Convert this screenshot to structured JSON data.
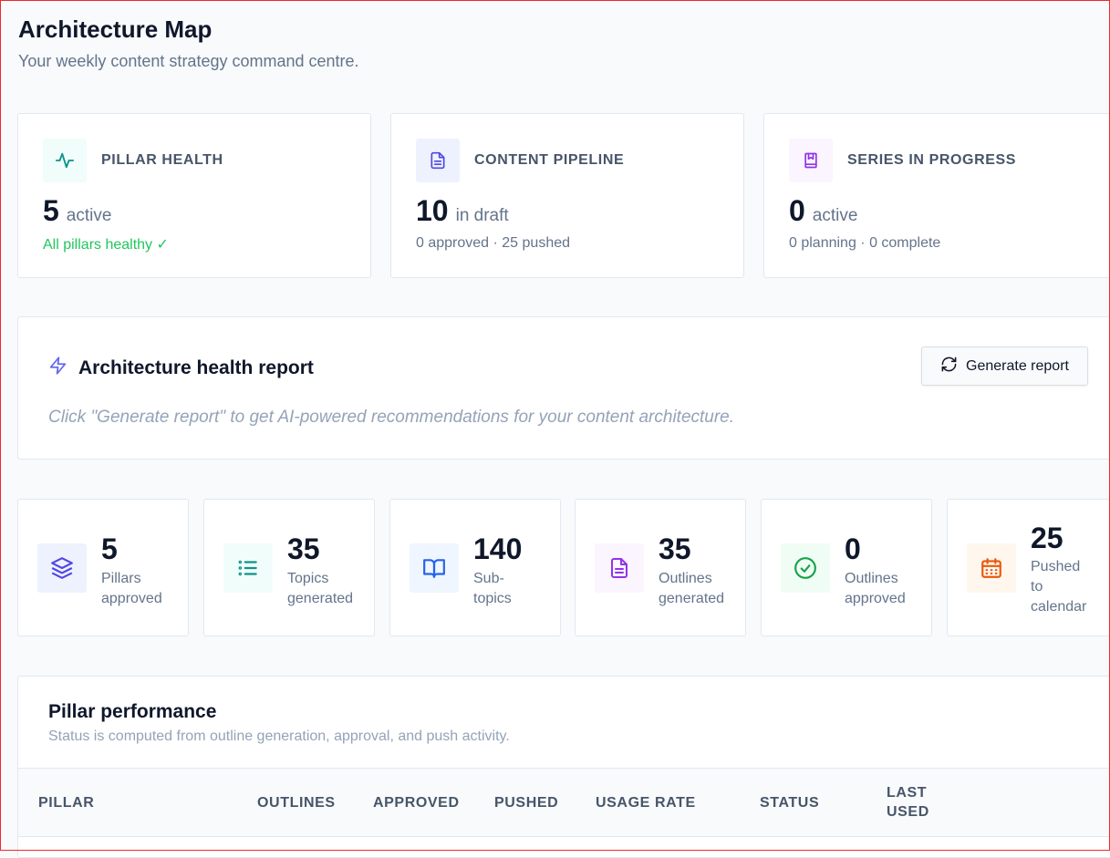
{
  "header": {
    "title": "Architecture Map",
    "subtitle": "Your weekly content strategy command centre."
  },
  "stat_cards": [
    {
      "label": "PILLAR HEALTH",
      "value": "5",
      "unit": "active",
      "sub": "All pillars healthy ✓",
      "icon": "activity-icon",
      "accent": "#0d9488"
    },
    {
      "label": "CONTENT PIPELINE",
      "value": "10",
      "unit": "in draft",
      "sub": "0 approved · 25 pushed",
      "icon": "document-icon",
      "accent": "#4f46e5"
    },
    {
      "label": "SERIES IN PROGRESS",
      "value": "0",
      "unit": "active",
      "sub": "0 planning · 0 complete",
      "icon": "book-icon",
      "accent": "#9333ea"
    }
  ],
  "report": {
    "title": "Architecture health report",
    "button_label": "Generate report",
    "hint": "Click \"Generate report\" to get AI-powered recommendations for your content architecture."
  },
  "metrics": [
    {
      "value": "5",
      "caption": "Pillars approved",
      "icon": "layers-icon",
      "accent": "#4f46e5"
    },
    {
      "value": "35",
      "caption": "Topics generated",
      "icon": "list-icon",
      "accent": "#0d9488"
    },
    {
      "value": "140",
      "caption": "Sub-topics",
      "icon": "open-book-icon",
      "accent": "#2563eb"
    },
    {
      "value": "35",
      "caption": "Outlines generated",
      "icon": "document-icon",
      "accent": "#9333ea"
    },
    {
      "value": "0",
      "caption": "Outlines approved",
      "icon": "check-circle-icon",
      "accent": "#16a34a"
    },
    {
      "value": "25",
      "caption": "Pushed to calendar",
      "icon": "calendar-icon",
      "accent": "#ea580c"
    }
  ],
  "performance": {
    "title": "Pillar performance",
    "subtitle": "Status is computed from outline generation, approval, and push activity.",
    "columns": [
      "PILLAR",
      "OUTLINES",
      "APPROVED",
      "PUSHED",
      "USAGE RATE",
      "STATUS",
      "LAST USED"
    ]
  },
  "colors": {
    "healthy": "#22c55e",
    "border_highlight": "#ef2b2b"
  }
}
